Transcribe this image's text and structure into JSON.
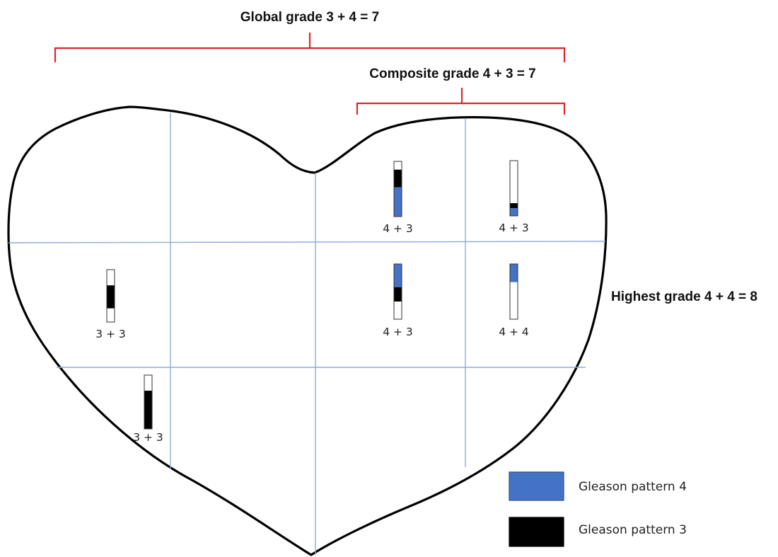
{
  "colors": {
    "pattern4": "#4472c4",
    "pattern3": "#000000",
    "bracket": "#e0242a",
    "grid": "#8eaad8",
    "outline": "#000000"
  },
  "labels": {
    "global": "Global grade 3 + 4 = 7",
    "composite": "Composite grade 4 + 3 = 7",
    "highest": "Highest grade 4 + 4 = 8"
  },
  "biopsies": [
    {
      "score": "4 + 3",
      "segments": [
        "white",
        "pattern3",
        "pattern4"
      ]
    },
    {
      "score": "4 + 3",
      "segments": [
        "white",
        "pattern3",
        "pattern4"
      ]
    },
    {
      "score": "3 + 3",
      "segments": [
        "white",
        "pattern3",
        "white"
      ]
    },
    {
      "score": "4 + 3",
      "segments": [
        "pattern4",
        "pattern3",
        "white"
      ]
    },
    {
      "score": "4 + 4",
      "segments": [
        "pattern4",
        "white"
      ]
    },
    {
      "score": "3 + 3",
      "segments": [
        "white",
        "pattern3"
      ]
    }
  ],
  "legend": [
    {
      "color": "pattern4",
      "label": "Gleason pattern 4"
    },
    {
      "color": "pattern3",
      "label": "Gleason pattern 3"
    }
  ]
}
